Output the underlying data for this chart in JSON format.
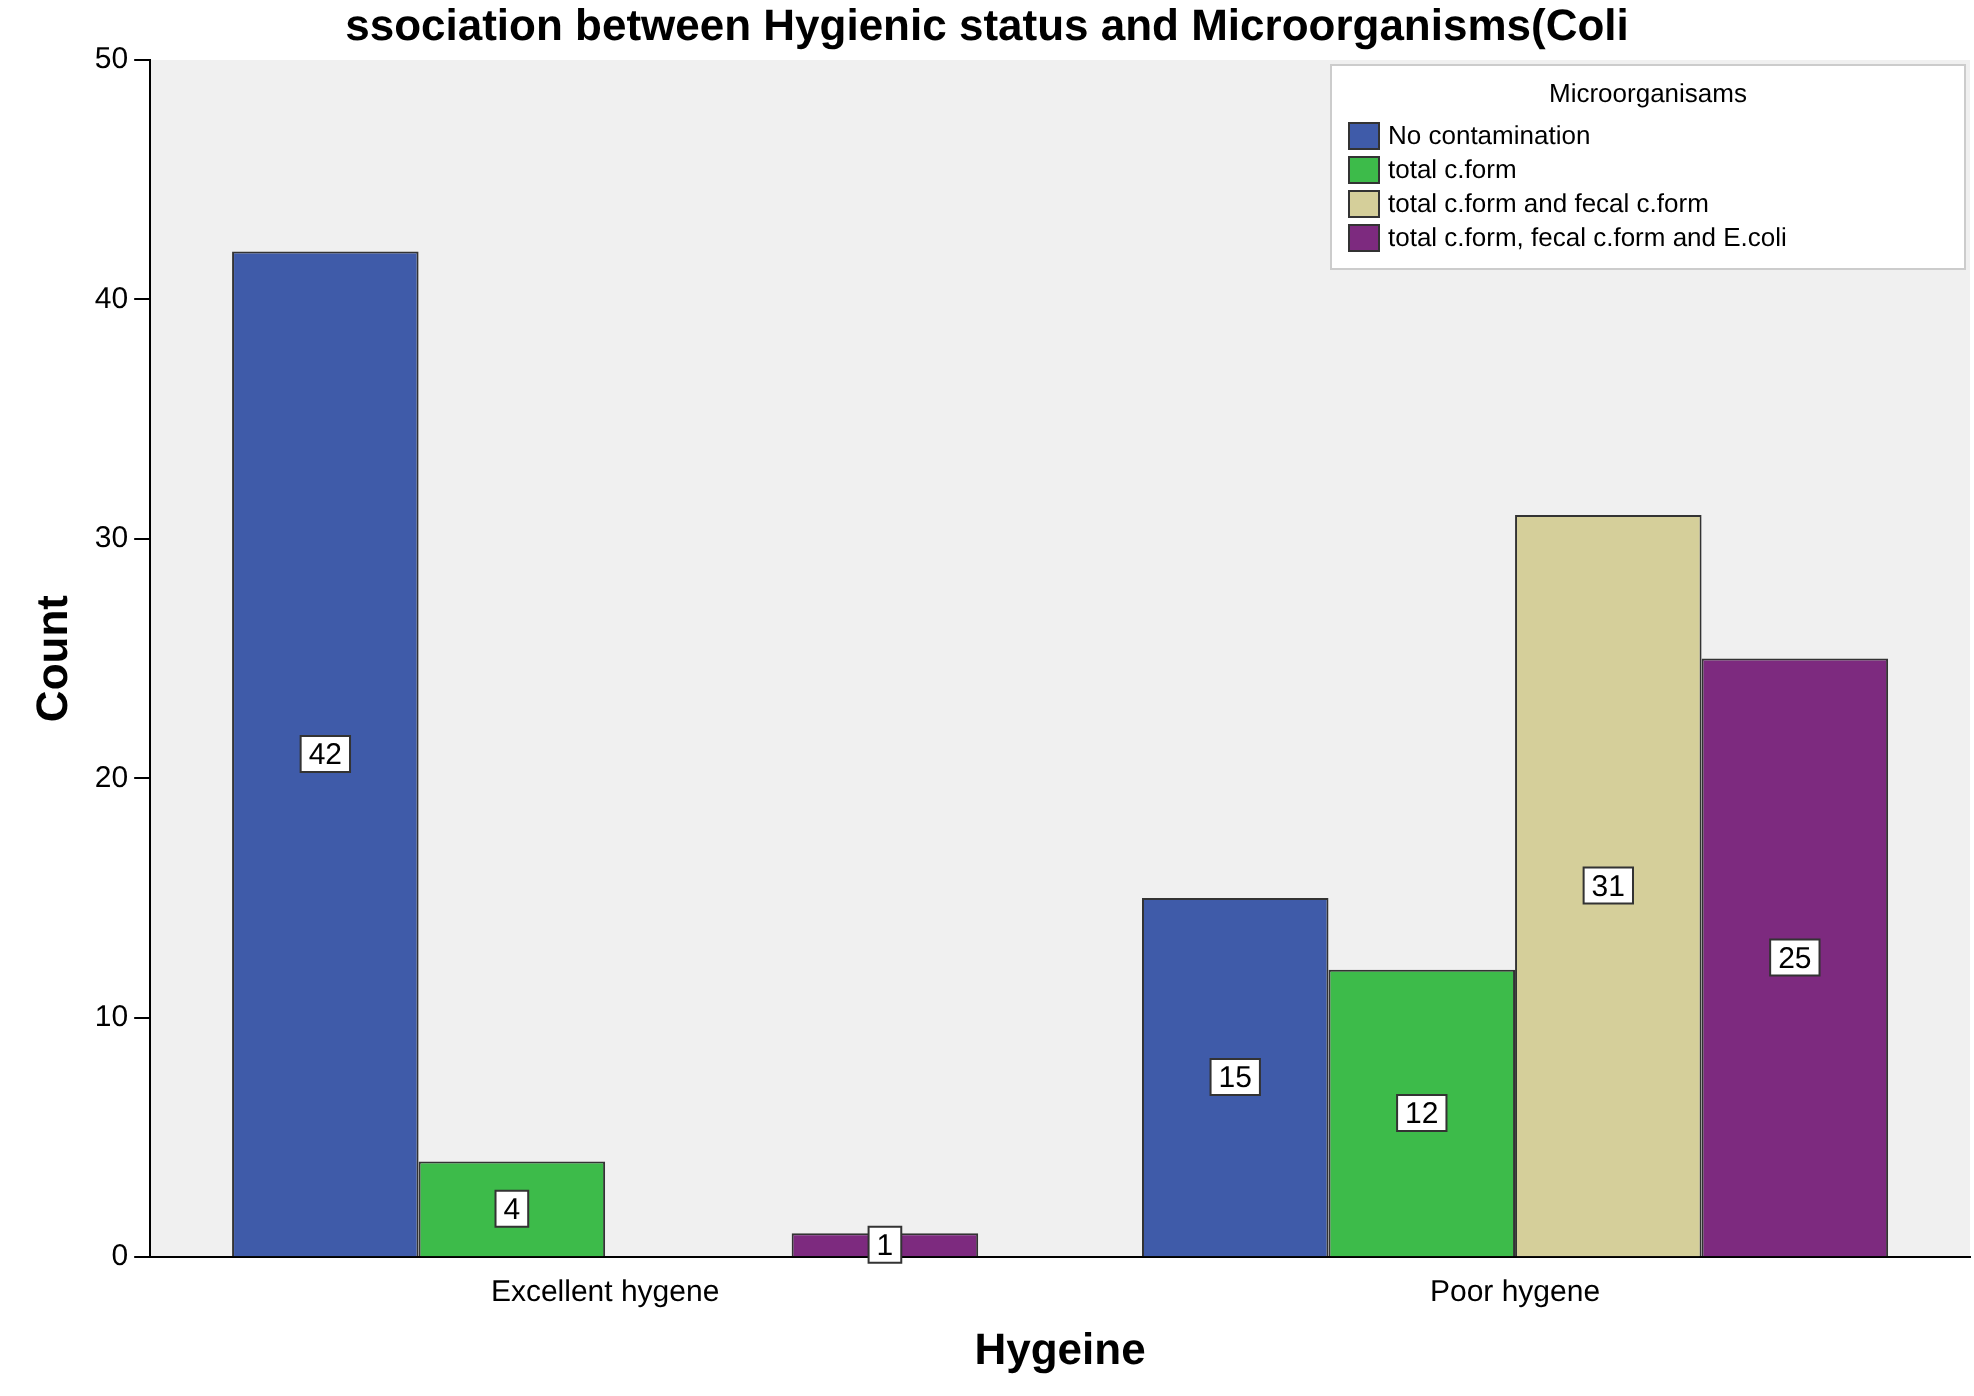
{
  "chart_data": {
    "type": "bar",
    "title": "ssociation between Hygienic status and Microorganisms(Coli",
    "xlabel": "Hygeine",
    "ylabel": "Count",
    "legend_title": "Microorganisams",
    "categories": [
      "Excellent hygene",
      "Poor hygene"
    ],
    "series": [
      {
        "name": "No contamination",
        "color": "#3f5ba9",
        "values": [
          42,
          15
        ]
      },
      {
        "name": "total c.form",
        "color": "#3dbb4a",
        "values": [
          4,
          12
        ]
      },
      {
        "name": "total c.form and fecal c.form",
        "color": "#d5cf9a",
        "values": [
          null,
          31
        ]
      },
      {
        "name": "total c.form, fecal c.form and E.coli",
        "color": "#7d2a7f",
        "values": [
          1,
          25
        ]
      }
    ],
    "ylim": [
      0,
      50
    ],
    "yticks": [
      0,
      10,
      20,
      30,
      40,
      50
    ],
    "grid": false,
    "legend": "top right",
    "data_labels": true
  }
}
